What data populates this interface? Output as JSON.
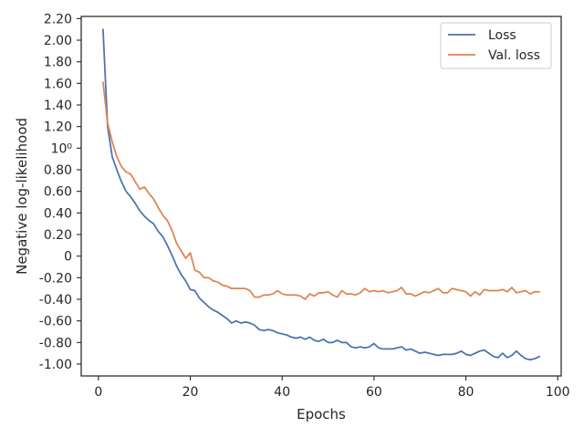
{
  "chart_data": {
    "type": "line",
    "title": "",
    "xlabel": "Epochs",
    "ylabel": "Negative log-likelihood",
    "xlim": [
      -3.75,
      100.75
    ],
    "ylim": [
      -1.11,
      2.22
    ],
    "grid": false,
    "legend_position": "top-right",
    "x_ticks": [
      {
        "value": 0,
        "label": "0"
      },
      {
        "value": 20,
        "label": "20"
      },
      {
        "value": 40,
        "label": "40"
      },
      {
        "value": 60,
        "label": "60"
      },
      {
        "value": 80,
        "label": "80"
      },
      {
        "value": 100,
        "label": "100"
      }
    ],
    "y_ticks": [
      {
        "value": -1.0,
        "label": "-1.00"
      },
      {
        "value": -0.8,
        "label": "-0.80"
      },
      {
        "value": -0.6,
        "label": "-0.60"
      },
      {
        "value": -0.4,
        "label": "-0.40"
      },
      {
        "value": -0.2,
        "label": "-0.20"
      },
      {
        "value": 0.0,
        "label": "0"
      },
      {
        "value": 0.2,
        "label": "0.20"
      },
      {
        "value": 0.4,
        "label": "0.40"
      },
      {
        "value": 0.6,
        "label": "0.60"
      },
      {
        "value": 0.8,
        "label": "0.80"
      },
      {
        "value": 1.0,
        "label": "10⁰"
      },
      {
        "value": 1.2,
        "label": "1.20"
      },
      {
        "value": 1.4,
        "label": "1.40"
      },
      {
        "value": 1.6,
        "label": "1.60"
      },
      {
        "value": 1.8,
        "label": "1.80"
      },
      {
        "value": 2.0,
        "label": "2.00"
      },
      {
        "value": 2.2,
        "label": "2.20"
      }
    ],
    "x": [
      1,
      2,
      3,
      4,
      5,
      6,
      7,
      8,
      9,
      10,
      11,
      12,
      13,
      14,
      15,
      16,
      17,
      18,
      19,
      20,
      21,
      22,
      23,
      24,
      25,
      26,
      27,
      28,
      29,
      30,
      31,
      32,
      33,
      34,
      35,
      36,
      37,
      38,
      39,
      40,
      41,
      42,
      43,
      44,
      45,
      46,
      47,
      48,
      49,
      50,
      51,
      52,
      53,
      54,
      55,
      56,
      57,
      58,
      59,
      60,
      61,
      62,
      63,
      64,
      65,
      66,
      67,
      68,
      69,
      70,
      71,
      72,
      73,
      74,
      75,
      76,
      77,
      78,
      79,
      80,
      81,
      82,
      83,
      84,
      85,
      86,
      87,
      88,
      89,
      90,
      91,
      92,
      93,
      94,
      95,
      96
    ],
    "series": [
      {
        "name": "Loss",
        "color": "#4c72b0",
        "values": [
          2.1,
          1.2,
          0.92,
          0.8,
          0.69,
          0.6,
          0.55,
          0.49,
          0.42,
          0.37,
          0.33,
          0.3,
          0.23,
          0.18,
          0.1,
          0.01,
          -0.09,
          -0.17,
          -0.23,
          -0.31,
          -0.32,
          -0.39,
          -0.43,
          -0.47,
          -0.5,
          -0.52,
          -0.55,
          -0.58,
          -0.62,
          -0.6,
          -0.62,
          -0.61,
          -0.62,
          -0.64,
          -0.68,
          -0.69,
          -0.68,
          -0.69,
          -0.71,
          -0.72,
          -0.73,
          -0.75,
          -0.76,
          -0.75,
          -0.77,
          -0.75,
          -0.78,
          -0.79,
          -0.77,
          -0.8,
          -0.8,
          -0.78,
          -0.8,
          -0.8,
          -0.84,
          -0.85,
          -0.84,
          -0.85,
          -0.84,
          -0.81,
          -0.85,
          -0.86,
          -0.86,
          -0.86,
          -0.85,
          -0.84,
          -0.87,
          -0.86,
          -0.88,
          -0.9,
          -0.89,
          -0.9,
          -0.91,
          -0.92,
          -0.91,
          -0.91,
          -0.91,
          -0.9,
          -0.88,
          -0.91,
          -0.92,
          -0.9,
          -0.88,
          -0.87,
          -0.9,
          -0.93,
          -0.94,
          -0.9,
          -0.94,
          -0.92,
          -0.88,
          -0.92,
          -0.95,
          -0.96,
          -0.95,
          -0.93
        ]
      },
      {
        "name": "Val. loss",
        "color": "#dd8452",
        "values": [
          1.61,
          1.23,
          1.06,
          0.92,
          0.83,
          0.78,
          0.76,
          0.69,
          0.62,
          0.64,
          0.58,
          0.53,
          0.45,
          0.38,
          0.33,
          0.24,
          0.12,
          0.05,
          -0.02,
          0.03,
          -0.13,
          -0.15,
          -0.2,
          -0.2,
          -0.23,
          -0.24,
          -0.27,
          -0.28,
          -0.3,
          -0.3,
          -0.3,
          -0.3,
          -0.32,
          -0.38,
          -0.38,
          -0.36,
          -0.36,
          -0.35,
          -0.32,
          -0.35,
          -0.36,
          -0.36,
          -0.36,
          -0.37,
          -0.4,
          -0.35,
          -0.37,
          -0.34,
          -0.34,
          -0.33,
          -0.36,
          -0.38,
          -0.32,
          -0.35,
          -0.35,
          -0.36,
          -0.34,
          -0.3,
          -0.33,
          -0.32,
          -0.33,
          -0.32,
          -0.34,
          -0.33,
          -0.32,
          -0.29,
          -0.35,
          -0.35,
          -0.37,
          -0.35,
          -0.33,
          -0.34,
          -0.32,
          -0.3,
          -0.34,
          -0.34,
          -0.3,
          -0.31,
          -0.32,
          -0.33,
          -0.37,
          -0.33,
          -0.36,
          -0.31,
          -0.32,
          -0.32,
          -0.32,
          -0.31,
          -0.33,
          -0.29,
          -0.34,
          -0.33,
          -0.32,
          -0.35,
          -0.33,
          -0.33
        ]
      }
    ]
  }
}
